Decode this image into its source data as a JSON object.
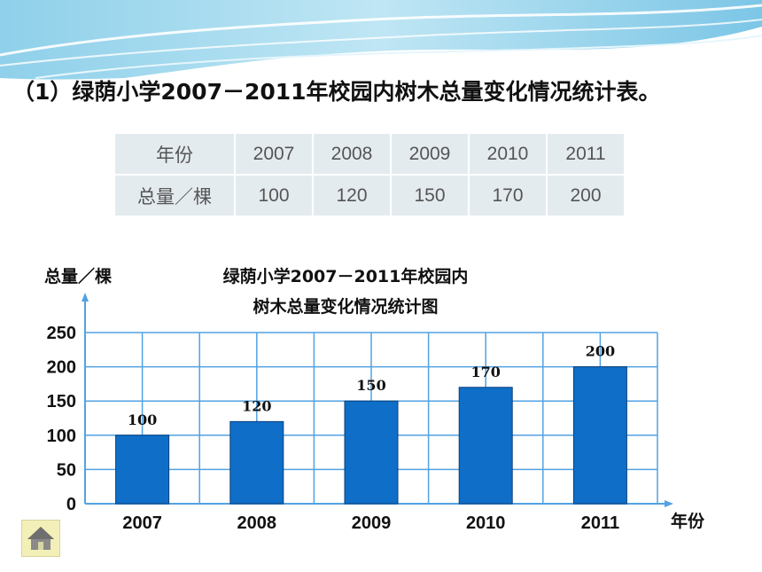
{
  "heading": "（1）绿荫小学2007－2011年校园内树木总量变化情况统计表。",
  "table": {
    "row_headers": [
      "年份",
      "总量／棵"
    ],
    "years": [
      "2007",
      "2008",
      "2009",
      "2010",
      "2011"
    ],
    "totals": [
      "100",
      "120",
      "150",
      "170",
      "200"
    ]
  },
  "colors": {
    "bar": "#0f6ec7",
    "grid": "#52a2e3",
    "table_bg": "#e4ebef",
    "table_border": "#9fc4de"
  },
  "chart_data": {
    "type": "bar",
    "title_lines": [
      "绿荫小学2007－2011年校园内",
      "树木总量变化情况统计图"
    ],
    "ylabel": "总量／棵",
    "xlabel": "年份",
    "categories": [
      "2007",
      "2008",
      "2009",
      "2010",
      "2011"
    ],
    "values": [
      100,
      120,
      150,
      170,
      200
    ],
    "data_labels": [
      "100",
      "120",
      "150",
      "170",
      "200"
    ],
    "ylim": [
      0,
      250
    ],
    "yticks": [
      "0",
      "50",
      "100",
      "150",
      "200",
      "250"
    ],
    "grid": true
  },
  "nav": {
    "home_icon": "home-icon"
  }
}
